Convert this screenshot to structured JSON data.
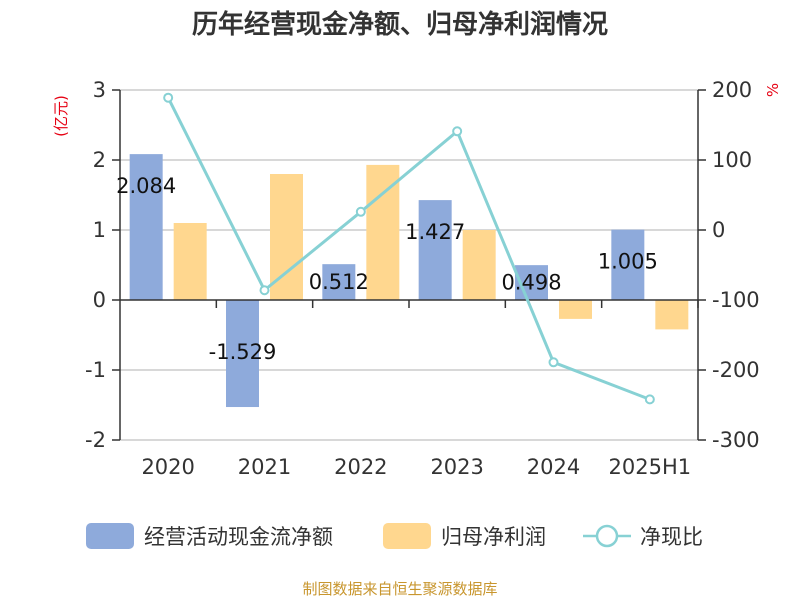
{
  "chart_data": {
    "type": "bar",
    "title": "历年经营现金净额、归母净利润情况",
    "categories": [
      "2020",
      "2021",
      "2022",
      "2023",
      "2024",
      "2025H1"
    ],
    "left_axis": {
      "unit": "(亿元)",
      "ylim": [
        -2,
        3
      ],
      "ticks": [
        "3",
        "2",
        "1",
        "0",
        "-1",
        "-2"
      ]
    },
    "right_axis": {
      "unit": "%",
      "ylim": [
        -300,
        200
      ],
      "ticks": [
        "200",
        "100",
        "0",
        "-100",
        "-200",
        "-300"
      ]
    },
    "series": [
      {
        "name": "经营活动现金流净额",
        "type": "bar",
        "axis": "left",
        "color": "#8EAADB",
        "values": [
          2.084,
          -1.529,
          0.512,
          1.427,
          0.498,
          1.005
        ],
        "labels": [
          "2.084",
          "-1.529",
          "0.512",
          "1.427",
          "0.498",
          "1.005"
        ]
      },
      {
        "name": "归母净利润",
        "type": "bar",
        "axis": "left",
        "color": "#FFD78F",
        "values": [
          1.1,
          1.8,
          1.93,
          1.0,
          -0.27,
          -0.42
        ]
      },
      {
        "name": "净现比",
        "type": "line",
        "axis": "right",
        "color": "#87D1D4",
        "values": [
          189,
          -86,
          26,
          141,
          -189,
          -242
        ]
      }
    ],
    "grid": true,
    "legend_position": "bottom"
  },
  "source_text": "制图数据来自恒生聚源数据库",
  "colors": {
    "title": "#333333",
    "axis_unit": "#E60012",
    "source": "#C8962E",
    "grid": "#CCCCCC",
    "axis": "#333333"
  }
}
